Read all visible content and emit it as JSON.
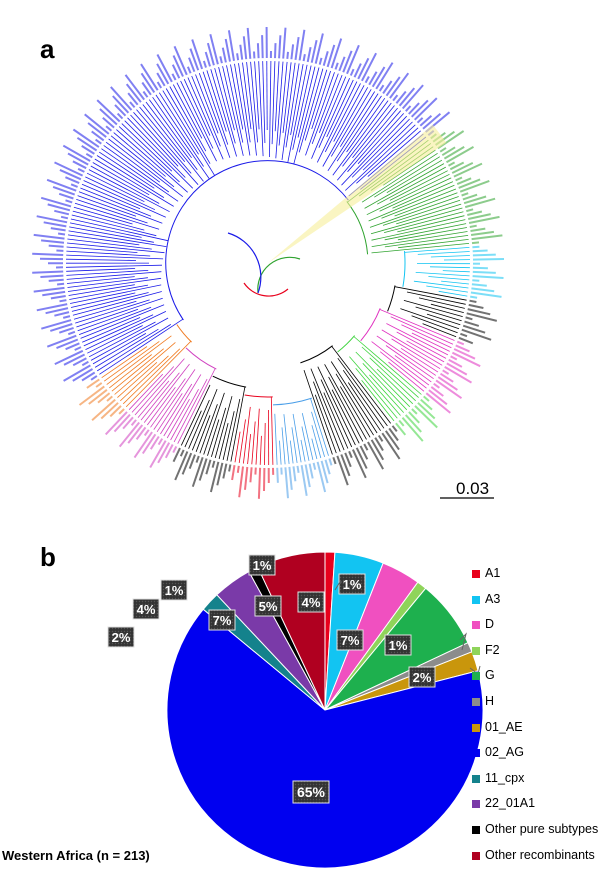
{
  "panel_a": {
    "letter": "a",
    "scale_label": "0.03"
  },
  "panel_b": {
    "letter": "b",
    "caption": "Western Africa (n = 213)"
  },
  "chart_data": {
    "type": "pie",
    "title": "",
    "slices": [
      {
        "name": "A1",
        "value": 1,
        "label": "1%",
        "color": "#e8001c"
      },
      {
        "name": "A3",
        "value": 5,
        "label": "5%",
        "color": "#12c4f2"
      },
      {
        "name": "D",
        "value": 4,
        "label": "4%",
        "color": "#f050c0"
      },
      {
        "name": "F2",
        "value": 1,
        "label": "1%",
        "color": "#8fd45a"
      },
      {
        "name": "G",
        "value": 7,
        "label": "7%",
        "color": "#1eb04e"
      },
      {
        "name": "H",
        "value": 1,
        "label": "1%",
        "color": "#8c8c8c"
      },
      {
        "name": "01_AE",
        "value": 2,
        "label": "2%",
        "color": "#c9960c"
      },
      {
        "name": "02_AG",
        "value": 65,
        "label": "65%",
        "color": "#0000f0"
      },
      {
        "name": "11_cpx",
        "value": 2,
        "label": "2%",
        "color": "#14828c"
      },
      {
        "name": "22_01A1",
        "value": 4,
        "label": "4%",
        "color": "#7a3aa8"
      },
      {
        "name": "Other pure subtypes",
        "value": 1,
        "label": "1%",
        "color": "#000000"
      },
      {
        "name": "Other recombinants",
        "value": 7,
        "label": "7%",
        "color": "#b00020"
      }
    ],
    "legend_position": "right"
  }
}
